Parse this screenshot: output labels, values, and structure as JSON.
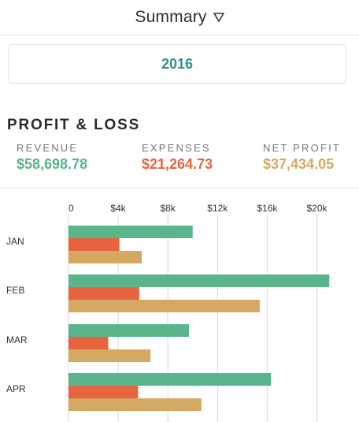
{
  "header": {
    "title": "Summary",
    "dropdown_icon": "triangle-down-icon"
  },
  "year_selector": {
    "value": "2016",
    "color": "#2e8f97"
  },
  "profit_loss": {
    "title": "PROFIT & LOSS",
    "metrics": [
      {
        "label": "REVENUE",
        "value": "$58,698.78",
        "color": "#5ab48c"
      },
      {
        "label": "EXPENSES",
        "value": "$21,264.73",
        "color": "#e8643f"
      },
      {
        "label": "NET PROFIT",
        "value": "$37,434.05",
        "color": "#d6a962"
      }
    ]
  },
  "chart_data": {
    "type": "bar",
    "orientation": "horizontal",
    "categories": [
      "JAN",
      "FEB",
      "MAR",
      "APR"
    ],
    "x_ticks": [
      "0",
      "$4k",
      "$8k",
      "$12k",
      "$16k",
      "$20k"
    ],
    "x_tick_values": [
      0,
      4000,
      8000,
      12000,
      16000,
      20000
    ],
    "xlim": [
      0,
      22000
    ],
    "grid": true,
    "series": [
      {
        "color": "#5ab48c",
        "values": [
          10000,
          21000,
          9700,
          16300
        ]
      },
      {
        "color": "#e8643f",
        "values": [
          4100,
          5700,
          3200,
          5600
        ]
      },
      {
        "color": "#d6a962",
        "values": [
          5900,
          15400,
          6600,
          10700
        ]
      }
    ]
  }
}
